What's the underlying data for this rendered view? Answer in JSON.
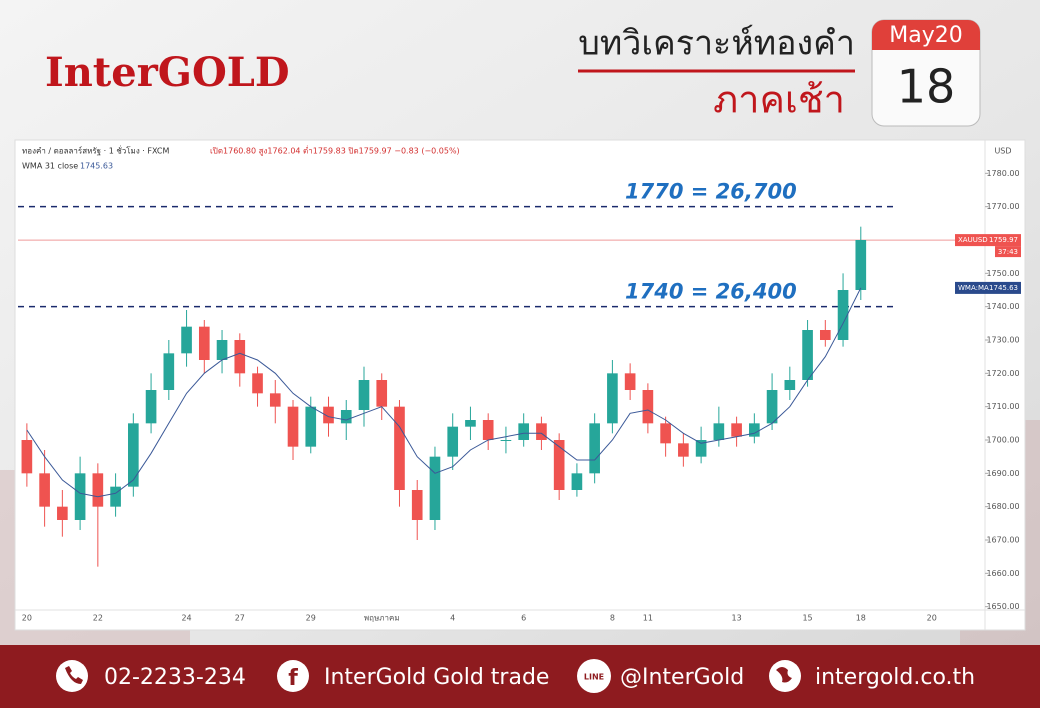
{
  "header": {
    "logo": "InterGOLD",
    "title": "บทวิเคราะห์ทองคำ",
    "subtitle": "ภาคเช้า",
    "calendar_month": "May20",
    "calendar_day": "18"
  },
  "chart_data": {
    "type": "candlestick",
    "symbol_text": "ทองคำ / ดอลลาร์สหรัฐ · 1 ชั่วโมง · FXCM",
    "ohlc_text": "เปิด1760.80 สูง1762.04 ต่ำ1759.83 ปิด1759.97 −0.83 (−0.05%)",
    "indicator_name": "WMA 31 close",
    "indicator_value": 1745.63,
    "currency": "USD",
    "price_tag": {
      "label": "XAUUSD",
      "value": 1759.97,
      "countdown": "37:43"
    },
    "indicator_tag": {
      "label": "WMA:MA",
      "value": 1745.63
    },
    "up_color": "#26a69a",
    "down_color": "#ef5350",
    "categories": [
      "20",
      null,
      null,
      null,
      "22",
      null,
      null,
      null,
      null,
      "24",
      null,
      null,
      "27",
      null,
      null,
      null,
      "29",
      null,
      null,
      null,
      "พฤษภาคม",
      null,
      null,
      null,
      "4",
      null,
      null,
      null,
      "6",
      null,
      null,
      null,
      null,
      "8",
      null,
      "11",
      null,
      null,
      null,
      null,
      "13",
      null,
      null,
      null,
      "15",
      null,
      null,
      "18",
      null,
      null,
      null,
      "20",
      null
    ],
    "open": [
      1700,
      1690,
      1680,
      1676,
      1690,
      1680,
      1686,
      1705,
      1715,
      1726,
      1734,
      1724,
      1730,
      1720,
      1714,
      1710,
      1698,
      1710,
      1705,
      1709,
      1718,
      1710,
      1685,
      1676,
      1695,
      1704,
      1706,
      1700,
      1700,
      1705,
      1700,
      1685,
      1690,
      1705,
      1720,
      1715,
      1705,
      1699,
      1695,
      1700,
      1705,
      1701,
      1705,
      1715,
      1718,
      1733,
      1730,
      1745,
      null,
      null,
      null,
      null,
      null
    ],
    "high": [
      1705,
      1697,
      1685,
      1695,
      1693,
      1690,
      1708,
      1720,
      1730,
      1739,
      1736,
      1733,
      1732,
      1722,
      1718,
      1712,
      1713,
      1713,
      1712,
      1722,
      1720,
      1712,
      1688,
      1698,
      1708,
      1710,
      1708,
      1704,
      1708,
      1707,
      1702,
      1693,
      1708,
      1724,
      1723,
      1717,
      1707,
      1702,
      1704,
      1710,
      1707,
      1708,
      1720,
      1722,
      1736,
      1736,
      1750,
      1764,
      null,
      null,
      null,
      null,
      null
    ],
    "low": [
      1686,
      1674,
      1671,
      1673,
      1662,
      1677,
      1683,
      1702,
      1712,
      1722,
      1720,
      1720,
      1716,
      1710,
      1705,
      1694,
      1696,
      1701,
      1700,
      1704,
      1706,
      1680,
      1670,
      1673,
      1691,
      1700,
      1697,
      1696,
      1698,
      1697,
      1682,
      1683,
      1687,
      1702,
      1712,
      1702,
      1695,
      1692,
      1693,
      1698,
      1698,
      1699,
      1703,
      1712,
      1716,
      1728,
      1728,
      1742,
      null,
      null,
      null,
      null,
      null
    ],
    "close": [
      1690,
      1680,
      1676,
      1690,
      1680,
      1686,
      1705,
      1715,
      1726,
      1734,
      1724,
      1730,
      1720,
      1714,
      1710,
      1698,
      1710,
      1705,
      1709,
      1718,
      1710,
      1685,
      1676,
      1695,
      1704,
      1706,
      1700,
      1700,
      1705,
      1700,
      1685,
      1690,
      1705,
      1720,
      1715,
      1705,
      1699,
      1695,
      1700,
      1705,
      1701,
      1705,
      1715,
      1718,
      1733,
      1730,
      1745,
      1760,
      null,
      null,
      null,
      null,
      null
    ],
    "series": [
      {
        "name": "WMA 31 close",
        "color": "#3b5998",
        "values": [
          1703,
          1695,
          1688,
          1684,
          1683,
          1684,
          1688,
          1696,
          1705,
          1714,
          1720,
          1724,
          1726,
          1724,
          1720,
          1714,
          1710,
          1707,
          1706,
          1708,
          1710,
          1704,
          1695,
          1690,
          1692,
          1697,
          1700,
          1701,
          1702,
          1702,
          1698,
          1694,
          1694,
          1700,
          1708,
          1709,
          1706,
          1702,
          1699,
          1700,
          1701,
          1702,
          1705,
          1710,
          1718,
          1725,
          1735,
          1745.63,
          null,
          null,
          null,
          null,
          null
        ]
      }
    ],
    "ylim": [
      1649,
      1784
    ],
    "yticks": [
      {
        "value": 1650,
        "label": "1650.00"
      },
      {
        "value": 1660,
        "label": "1660.00"
      },
      {
        "value": 1670,
        "label": "1670.00"
      },
      {
        "value": 1680,
        "label": "1680.00"
      },
      {
        "value": 1690,
        "label": "1690.00"
      },
      {
        "value": 1700,
        "label": "1700.00"
      },
      {
        "value": 1710,
        "label": "1710.00"
      },
      {
        "value": 1720,
        "label": "1720.00"
      },
      {
        "value": 1730,
        "label": "1730.00"
      },
      {
        "value": 1740,
        "label": "1740.00"
      },
      {
        "value": 1750,
        "label": "1750.00"
      },
      {
        "value": 1760,
        "label": "1760.00"
      },
      {
        "value": 1770,
        "label": "1770.00"
      },
      {
        "value": 1780,
        "label": "1780.00"
      }
    ],
    "annotations": [
      {
        "text": "1770 = 26,700",
        "value": 1770
      },
      {
        "text": "1740 = 26,400",
        "value": 1740
      }
    ]
  },
  "footer": {
    "phone": "02-2233-234",
    "facebook": "InterGold Gold trade",
    "line": "@InterGold",
    "website": "intergold.co.th"
  }
}
